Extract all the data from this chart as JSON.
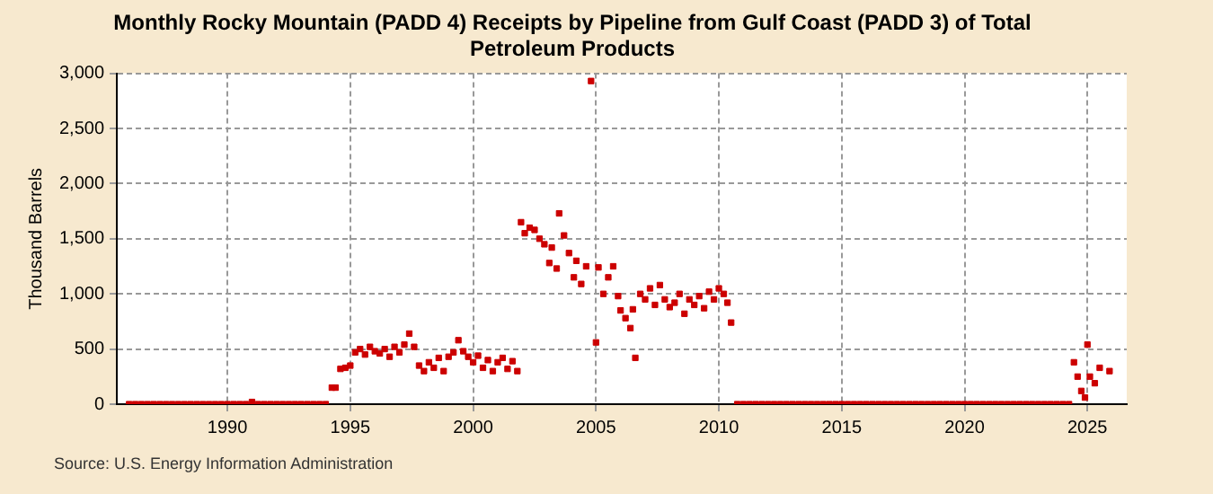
{
  "chart_data": {
    "type": "scatter",
    "title": "Monthly Rocky Mountain (PADD 4) Receipts by Pipeline from Gulf Coast (PADD 3) of Total Petroleum Products",
    "ylabel": "Thousand Barrels",
    "annotations": [
      "Source: U.S. Energy Information Administration"
    ],
    "xlim": [
      1985.5,
      2026.6
    ],
    "xticks": [
      1990,
      1995,
      2000,
      2005,
      2010,
      2015,
      2020,
      2025
    ],
    "ylim": [
      0,
      3000
    ],
    "yticks": [
      0,
      500,
      {
        "value": 1000,
        "label": "1,000"
      },
      {
        "value": 1500,
        "label": "1,500"
      },
      {
        "value": 2000,
        "label": "2,000"
      },
      {
        "value": 2500,
        "label": "2,500"
      },
      {
        "value": 3000,
        "label": "3,000"
      }
    ],
    "grid": true,
    "legend": false,
    "marker": "square",
    "series": [
      {
        "color": "#cc0000",
        "x": [
          1986,
          1986.25,
          1986.5,
          1986.75,
          1987,
          1987.25,
          1987.5,
          1987.75,
          1988,
          1988.25,
          1988.5,
          1988.75,
          1989,
          1989.25,
          1989.5,
          1989.75,
          1990,
          1990.25,
          1990.5,
          1990.75,
          1991,
          1991.25,
          1991.5,
          1991.75,
          1992,
          1992.25,
          1992.5,
          1992.75,
          1993,
          1993.25,
          1993.5,
          1993.75,
          1994,
          1994.25,
          1994.4,
          1994.6,
          1994.8,
          1995,
          1995.2,
          1995.4,
          1995.6,
          1995.8,
          1996,
          1996.2,
          1996.4,
          1996.6,
          1996.8,
          1997,
          1997.2,
          1997.4,
          1997.6,
          1997.8,
          1998,
          1998.2,
          1998.4,
          1998.6,
          1998.8,
          1999,
          1999.2,
          1999.4,
          1999.6,
          1999.8,
          2000,
          2000.2,
          2000.4,
          2000.6,
          2000.8,
          2001,
          2001.2,
          2001.4,
          2001.6,
          2001.8,
          2001.95,
          2002.1,
          2002.3,
          2002.5,
          2002.7,
          2002.9,
          2003.1,
          2003.2,
          2003.4,
          2003.5,
          2003.7,
          2003.9,
          2004.1,
          2004.2,
          2004.4,
          2004.6,
          2004.8,
          2005,
          2005.1,
          2005.3,
          2005.5,
          2005.7,
          2005.9,
          2006,
          2006.2,
          2006.4,
          2006.5,
          2006.6,
          2006.8,
          2007,
          2007.2,
          2007.4,
          2007.6,
          2007.8,
          2008,
          2008.2,
          2008.4,
          2008.6,
          2008.8,
          2009,
          2009.2,
          2009.4,
          2009.6,
          2009.8,
          2010,
          2010.2,
          2010.35,
          2010.5,
          2010.75,
          2011,
          2011.25,
          2011.5,
          2011.75,
          2012,
          2012.25,
          2012.5,
          2012.75,
          2013,
          2013.25,
          2013.5,
          2013.75,
          2014,
          2014.25,
          2014.5,
          2014.75,
          2015,
          2015.25,
          2015.5,
          2015.75,
          2016,
          2016.25,
          2016.5,
          2016.75,
          2017,
          2017.25,
          2017.5,
          2017.75,
          2018,
          2018.25,
          2018.5,
          2018.75,
          2019,
          2019.25,
          2019.5,
          2019.75,
          2020,
          2020.25,
          2020.5,
          2020.75,
          2021,
          2021.25,
          2021.5,
          2021.75,
          2022,
          2022.25,
          2022.5,
          2022.75,
          2023,
          2023.25,
          2023.5,
          2023.75,
          2024,
          2024.25,
          2024.45,
          2024.6,
          2024.75,
          2024.9,
          2025,
          2025.1,
          2025.3,
          2025.5,
          2025.9
        ],
        "values": [
          0,
          0,
          0,
          0,
          0,
          0,
          0,
          0,
          0,
          0,
          0,
          0,
          0,
          0,
          0,
          0,
          0,
          0,
          0,
          0,
          20,
          0,
          0,
          0,
          0,
          0,
          0,
          0,
          0,
          0,
          0,
          0,
          0,
          150,
          150,
          320,
          330,
          350,
          470,
          500,
          450,
          520,
          480,
          460,
          500,
          430,
          520,
          470,
          540,
          640,
          520,
          350,
          300,
          380,
          330,
          420,
          300,
          430,
          470,
          580,
          480,
          430,
          380,
          440,
          330,
          400,
          300,
          380,
          420,
          320,
          390,
          300,
          1650,
          1550,
          1600,
          1580,
          1500,
          1450,
          1280,
          1420,
          1230,
          1730,
          1530,
          1370,
          1150,
          1300,
          1090,
          1250,
          2930,
          560,
          1240,
          1000,
          1150,
          1250,
          980,
          850,
          780,
          690,
          860,
          420,
          1000,
          950,
          1050,
          900,
          1080,
          950,
          880,
          920,
          1000,
          820,
          950,
          900,
          980,
          870,
          1020,
          950,
          1050,
          1000,
          920,
          740,
          0,
          0,
          0,
          0,
          0,
          0,
          0,
          0,
          0,
          0,
          0,
          0,
          0,
          0,
          0,
          0,
          0,
          0,
          0,
          0,
          0,
          0,
          0,
          0,
          0,
          0,
          0,
          0,
          0,
          0,
          0,
          0,
          0,
          0,
          0,
          0,
          0,
          0,
          0,
          0,
          0,
          0,
          0,
          0,
          0,
          0,
          0,
          0,
          0,
          0,
          0,
          0,
          0,
          0,
          0,
          380,
          250,
          120,
          60,
          540,
          250,
          190,
          330,
          300
        ]
      }
    ]
  }
}
